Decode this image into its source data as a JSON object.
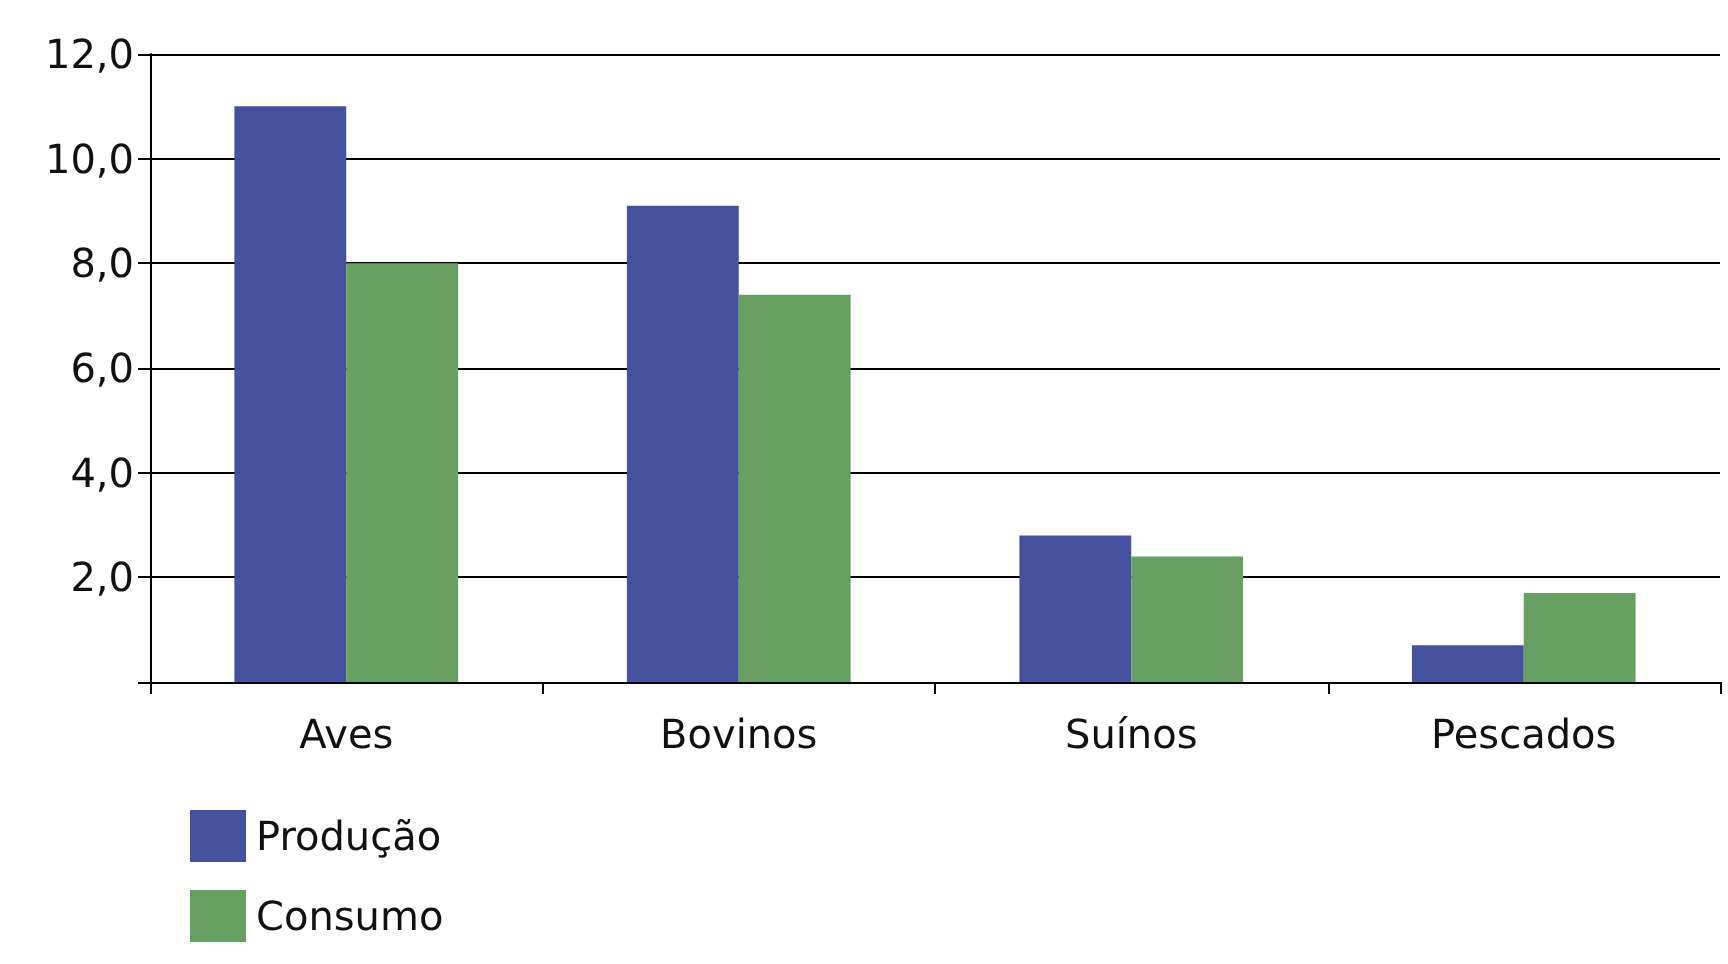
{
  "chart_data": {
    "type": "bar",
    "categories": [
      "Aves",
      "Bovinos",
      "Suínos",
      "Pescados"
    ],
    "series": [
      {
        "name": "Produção",
        "color": "#44519e",
        "values": [
          11.0,
          9.1,
          2.8,
          0.7
        ]
      },
      {
        "name": "Consumo",
        "color": "#68a064",
        "values": [
          8.0,
          7.4,
          2.4,
          1.7
        ]
      }
    ],
    "ylim": [
      0,
      12
    ],
    "yticks": [
      {
        "value": 0,
        "label": null
      },
      {
        "value": 2,
        "label": "2,0"
      },
      {
        "value": 4,
        "label": "4,0"
      },
      {
        "value": 6,
        "label": "6,0"
      },
      {
        "value": 8,
        "label": "8,0"
      },
      {
        "value": 10,
        "label": "10,0"
      },
      {
        "value": 12,
        "label": "12,0"
      }
    ],
    "grid": "y",
    "legend": "bottom left"
  }
}
